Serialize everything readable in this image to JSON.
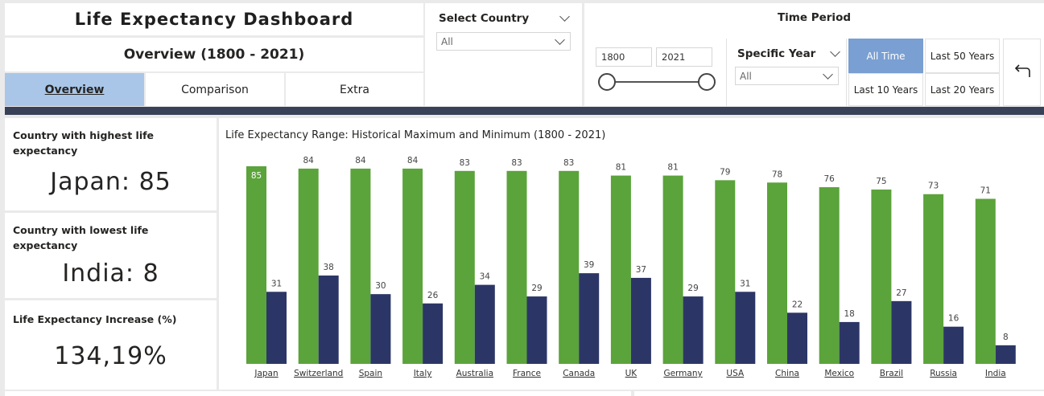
{
  "header": {
    "title": "Life Expectancy Dashboard",
    "subtitle": "Overview (1800 - 2021)",
    "tabs": [
      {
        "label": "Overview",
        "active": true
      },
      {
        "label": "Comparison",
        "active": false
      },
      {
        "label": "Extra",
        "active": false
      }
    ]
  },
  "country_slicer": {
    "title": "Select Country",
    "value": "All"
  },
  "time_period": {
    "title": "Time Period",
    "start_year": "1800",
    "end_year": "2021",
    "specific_year_title": "Specific Year",
    "specific_year_value": "All",
    "buttons": [
      {
        "label": "All Time",
        "active": true
      },
      {
        "label": "Last 50 Years",
        "active": false
      },
      {
        "label": "Last 10 Years",
        "active": false
      },
      {
        "label": "Last 20 Years",
        "active": false
      }
    ],
    "back_icon": "back-arrow-icon"
  },
  "kpis": [
    {
      "label": "Country with highest life expectancy",
      "value": "Japan: 85"
    },
    {
      "label": "Country with lowest life expectancy",
      "value": "India: 8"
    },
    {
      "label": "Life Expectancy Increase (%)",
      "value": "134,19%"
    }
  ],
  "colors": {
    "max_series": "#5ba33b",
    "min_series": "#2c3666",
    "active_tab": "#a9c6e8",
    "active_button": "#7a9fd2",
    "divider": "#384157"
  },
  "chart_data": {
    "type": "bar",
    "title": "Life Expectancy Range: Historical Maximum and Minimum (1800 - 2021)",
    "categories": [
      "Japan",
      "Switzerland",
      "Spain",
      "Italy",
      "Australia",
      "France",
      "Canada",
      "UK",
      "Germany",
      "USA",
      "China",
      "Mexico",
      "Brazil",
      "Russia",
      "India"
    ],
    "series": [
      {
        "values": [
          85,
          84,
          84,
          84,
          83,
          83,
          83,
          81,
          81,
          79,
          78,
          76,
          75,
          73,
          71
        ]
      },
      {
        "values": [
          31,
          38,
          30,
          26,
          34,
          29,
          39,
          37,
          29,
          31,
          22,
          18,
          27,
          16,
          8
        ]
      }
    ],
    "ylim": [
      0,
      85
    ],
    "grid": false,
    "legend": "none"
  }
}
